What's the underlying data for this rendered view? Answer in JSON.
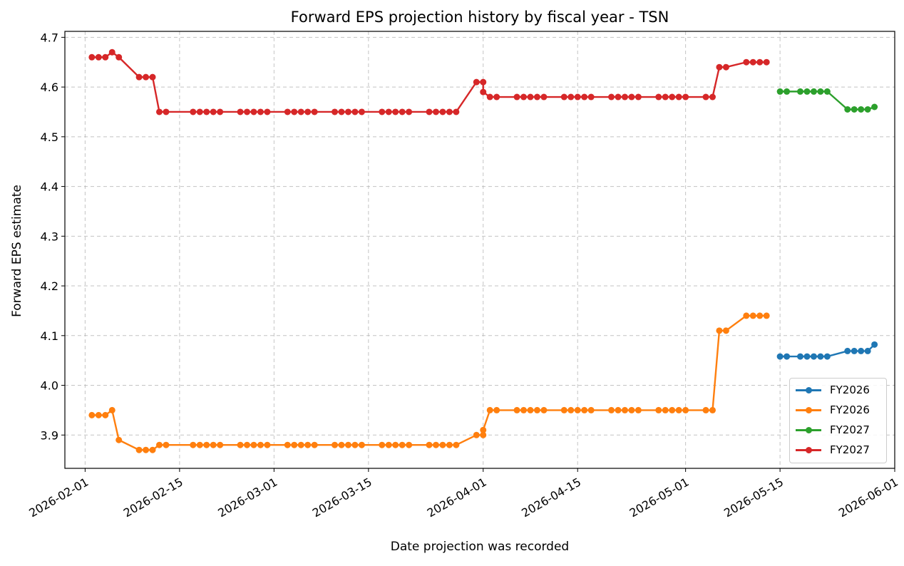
{
  "chart_data": {
    "type": "line",
    "title": "Forward EPS projection history by fiscal year - TSN",
    "xlabel": "Date projection was recorded",
    "ylabel": "Forward EPS estimate",
    "xlim": [
      "2026-01-29",
      "2026-06-01"
    ],
    "ylim": [
      3.833,
      4.712
    ],
    "x_ticks": [
      "2026-02-01",
      "2026-02-15",
      "2026-03-01",
      "2026-03-15",
      "2026-04-01",
      "2026-04-15",
      "2026-05-01",
      "2026-05-15",
      "2026-06-01"
    ],
    "y_ticks": [
      3.9,
      4.0,
      4.1,
      4.2,
      4.3,
      4.4,
      4.5,
      4.6,
      4.7
    ],
    "grid": true,
    "legend_position": "lower right",
    "series": [
      {
        "name": "FY2026",
        "color": "#1f77b4",
        "points": [
          [
            "2026-05-15",
            4.058
          ],
          [
            "2026-05-16",
            4.058
          ],
          [
            "2026-05-18",
            4.058
          ],
          [
            "2026-05-19",
            4.058
          ],
          [
            "2026-05-20",
            4.058
          ],
          [
            "2026-05-21",
            4.058
          ],
          [
            "2026-05-22",
            4.058
          ],
          [
            "2026-05-25",
            4.069
          ],
          [
            "2026-05-26",
            4.069
          ],
          [
            "2026-05-27",
            4.069
          ],
          [
            "2026-05-28",
            4.069
          ],
          [
            "2026-05-29",
            4.082
          ]
        ]
      },
      {
        "name": "FY2026",
        "color": "#ff7f0e",
        "points": [
          [
            "2026-02-02",
            3.94
          ],
          [
            "2026-02-03",
            3.94
          ],
          [
            "2026-02-04",
            3.94
          ],
          [
            "2026-02-05",
            3.95
          ],
          [
            "2026-02-06",
            3.89
          ],
          [
            "2026-02-09",
            3.87
          ],
          [
            "2026-02-10",
            3.87
          ],
          [
            "2026-02-11",
            3.87
          ],
          [
            "2026-02-12",
            3.88
          ],
          [
            "2026-02-13",
            3.88
          ],
          [
            "2026-02-17",
            3.88
          ],
          [
            "2026-02-18",
            3.88
          ],
          [
            "2026-02-19",
            3.88
          ],
          [
            "2026-02-20",
            3.88
          ],
          [
            "2026-02-21",
            3.88
          ],
          [
            "2026-02-24",
            3.88
          ],
          [
            "2026-02-25",
            3.88
          ],
          [
            "2026-02-26",
            3.88
          ],
          [
            "2026-02-27",
            3.88
          ],
          [
            "2026-02-28",
            3.88
          ],
          [
            "2026-03-03",
            3.88
          ],
          [
            "2026-03-04",
            3.88
          ],
          [
            "2026-03-05",
            3.88
          ],
          [
            "2026-03-06",
            3.88
          ],
          [
            "2026-03-07",
            3.88
          ],
          [
            "2026-03-10",
            3.88
          ],
          [
            "2026-03-11",
            3.88
          ],
          [
            "2026-03-12",
            3.88
          ],
          [
            "2026-03-13",
            3.88
          ],
          [
            "2026-03-14",
            3.88
          ],
          [
            "2026-03-17",
            3.88
          ],
          [
            "2026-03-18",
            3.88
          ],
          [
            "2026-03-19",
            3.88
          ],
          [
            "2026-03-20",
            3.88
          ],
          [
            "2026-03-21",
            3.88
          ],
          [
            "2026-03-24",
            3.88
          ],
          [
            "2026-03-25",
            3.88
          ],
          [
            "2026-03-26",
            3.88
          ],
          [
            "2026-03-27",
            3.88
          ],
          [
            "2026-03-28",
            3.88
          ],
          [
            "2026-03-31",
            3.9
          ],
          [
            "2026-04-01",
            3.9
          ],
          [
            "2026-04-01",
            3.91
          ],
          [
            "2026-04-02",
            3.95
          ],
          [
            "2026-04-03",
            3.95
          ],
          [
            "2026-04-06",
            3.95
          ],
          [
            "2026-04-07",
            3.95
          ],
          [
            "2026-04-08",
            3.95
          ],
          [
            "2026-04-09",
            3.95
          ],
          [
            "2026-04-10",
            3.95
          ],
          [
            "2026-04-13",
            3.95
          ],
          [
            "2026-04-14",
            3.95
          ],
          [
            "2026-04-15",
            3.95
          ],
          [
            "2026-04-16",
            3.95
          ],
          [
            "2026-04-17",
            3.95
          ],
          [
            "2026-04-20",
            3.95
          ],
          [
            "2026-04-21",
            3.95
          ],
          [
            "2026-04-22",
            3.95
          ],
          [
            "2026-04-23",
            3.95
          ],
          [
            "2026-04-24",
            3.95
          ],
          [
            "2026-04-27",
            3.95
          ],
          [
            "2026-04-28",
            3.95
          ],
          [
            "2026-04-29",
            3.95
          ],
          [
            "2026-04-30",
            3.95
          ],
          [
            "2026-05-01",
            3.95
          ],
          [
            "2026-05-04",
            3.95
          ],
          [
            "2026-05-05",
            3.95
          ],
          [
            "2026-05-06",
            4.11
          ],
          [
            "2026-05-07",
            4.11
          ],
          [
            "2026-05-10",
            4.14
          ],
          [
            "2026-05-11",
            4.14
          ],
          [
            "2026-05-12",
            4.14
          ],
          [
            "2026-05-13",
            4.14
          ]
        ]
      },
      {
        "name": "FY2027",
        "color": "#2ca02c",
        "points": [
          [
            "2026-05-15",
            4.591
          ],
          [
            "2026-05-16",
            4.591
          ],
          [
            "2026-05-18",
            4.591
          ],
          [
            "2026-05-19",
            4.591
          ],
          [
            "2026-05-20",
            4.591
          ],
          [
            "2026-05-21",
            4.591
          ],
          [
            "2026-05-22",
            4.591
          ],
          [
            "2026-05-25",
            4.555
          ],
          [
            "2026-05-26",
            4.555
          ],
          [
            "2026-05-27",
            4.555
          ],
          [
            "2026-05-28",
            4.555
          ],
          [
            "2026-05-29",
            4.56
          ]
        ]
      },
      {
        "name": "FY2027",
        "color": "#d62728",
        "points": [
          [
            "2026-02-02",
            4.66
          ],
          [
            "2026-02-03",
            4.66
          ],
          [
            "2026-02-04",
            4.66
          ],
          [
            "2026-02-05",
            4.67
          ],
          [
            "2026-02-06",
            4.66
          ],
          [
            "2026-02-09",
            4.62
          ],
          [
            "2026-02-10",
            4.62
          ],
          [
            "2026-02-11",
            4.62
          ],
          [
            "2026-02-12",
            4.55
          ],
          [
            "2026-02-13",
            4.55
          ],
          [
            "2026-02-17",
            4.55
          ],
          [
            "2026-02-18",
            4.55
          ],
          [
            "2026-02-19",
            4.55
          ],
          [
            "2026-02-20",
            4.55
          ],
          [
            "2026-02-21",
            4.55
          ],
          [
            "2026-02-24",
            4.55
          ],
          [
            "2026-02-25",
            4.55
          ],
          [
            "2026-02-26",
            4.55
          ],
          [
            "2026-02-27",
            4.55
          ],
          [
            "2026-02-28",
            4.55
          ],
          [
            "2026-03-03",
            4.55
          ],
          [
            "2026-03-04",
            4.55
          ],
          [
            "2026-03-05",
            4.55
          ],
          [
            "2026-03-06",
            4.55
          ],
          [
            "2026-03-07",
            4.55
          ],
          [
            "2026-03-10",
            4.55
          ],
          [
            "2026-03-11",
            4.55
          ],
          [
            "2026-03-12",
            4.55
          ],
          [
            "2026-03-13",
            4.55
          ],
          [
            "2026-03-14",
            4.55
          ],
          [
            "2026-03-17",
            4.55
          ],
          [
            "2026-03-18",
            4.55
          ],
          [
            "2026-03-19",
            4.55
          ],
          [
            "2026-03-20",
            4.55
          ],
          [
            "2026-03-21",
            4.55
          ],
          [
            "2026-03-24",
            4.55
          ],
          [
            "2026-03-25",
            4.55
          ],
          [
            "2026-03-26",
            4.55
          ],
          [
            "2026-03-27",
            4.55
          ],
          [
            "2026-03-28",
            4.55
          ],
          [
            "2026-03-31",
            4.61
          ],
          [
            "2026-04-01",
            4.61
          ],
          [
            "2026-04-01",
            4.59
          ],
          [
            "2026-04-02",
            4.58
          ],
          [
            "2026-04-03",
            4.58
          ],
          [
            "2026-04-06",
            4.58
          ],
          [
            "2026-04-07",
            4.58
          ],
          [
            "2026-04-08",
            4.58
          ],
          [
            "2026-04-09",
            4.58
          ],
          [
            "2026-04-10",
            4.58
          ],
          [
            "2026-04-13",
            4.58
          ],
          [
            "2026-04-14",
            4.58
          ],
          [
            "2026-04-15",
            4.58
          ],
          [
            "2026-04-16",
            4.58
          ],
          [
            "2026-04-17",
            4.58
          ],
          [
            "2026-04-20",
            4.58
          ],
          [
            "2026-04-21",
            4.58
          ],
          [
            "2026-04-22",
            4.58
          ],
          [
            "2026-04-23",
            4.58
          ],
          [
            "2026-04-24",
            4.58
          ],
          [
            "2026-04-27",
            4.58
          ],
          [
            "2026-04-28",
            4.58
          ],
          [
            "2026-04-29",
            4.58
          ],
          [
            "2026-04-30",
            4.58
          ],
          [
            "2026-05-01",
            4.58
          ],
          [
            "2026-05-04",
            4.58
          ],
          [
            "2026-05-05",
            4.58
          ],
          [
            "2026-05-06",
            4.64
          ],
          [
            "2026-05-07",
            4.64
          ],
          [
            "2026-05-10",
            4.65
          ],
          [
            "2026-05-11",
            4.65
          ],
          [
            "2026-05-12",
            4.65
          ],
          [
            "2026-05-13",
            4.65
          ]
        ]
      }
    ]
  }
}
